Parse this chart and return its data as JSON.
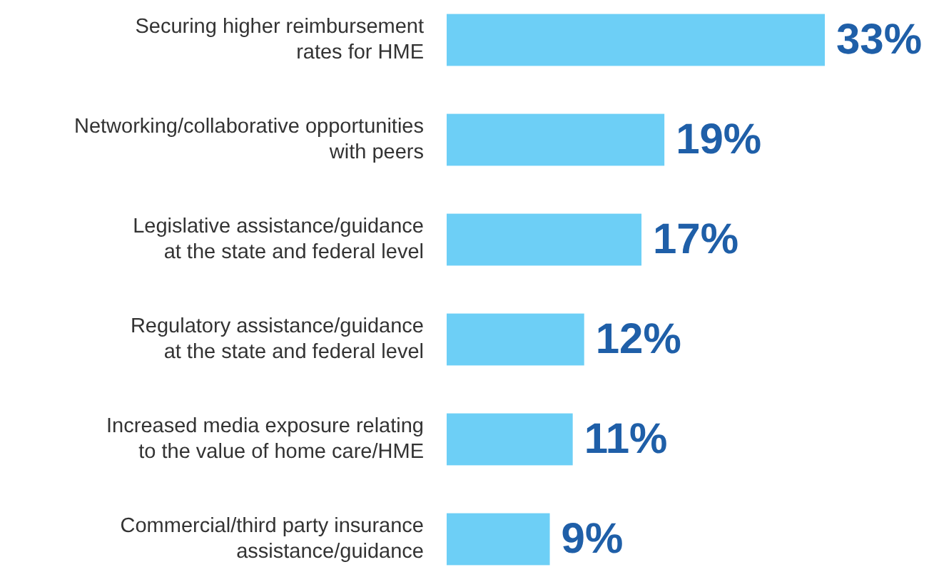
{
  "chart_data": {
    "type": "bar",
    "orientation": "horizontal",
    "categories": [
      "Securing higher reimbursement\nrates for HME",
      "Networking/collaborative opportunities\nwith peers",
      "Legislative assistance/guidance\nat the state and federal level",
      "Regulatory assistance/guidance\nat the state and federal level",
      "Increased media exposure relating\nto the value of home care/HME",
      "Commercial/third party insurance\nassistance/guidance"
    ],
    "values": [
      33,
      19,
      17,
      12,
      11,
      9
    ],
    "value_labels": [
      "33%",
      "19%",
      "17%",
      "12%",
      "11%",
      "9%"
    ],
    "color": "#6dcff6"
  }
}
